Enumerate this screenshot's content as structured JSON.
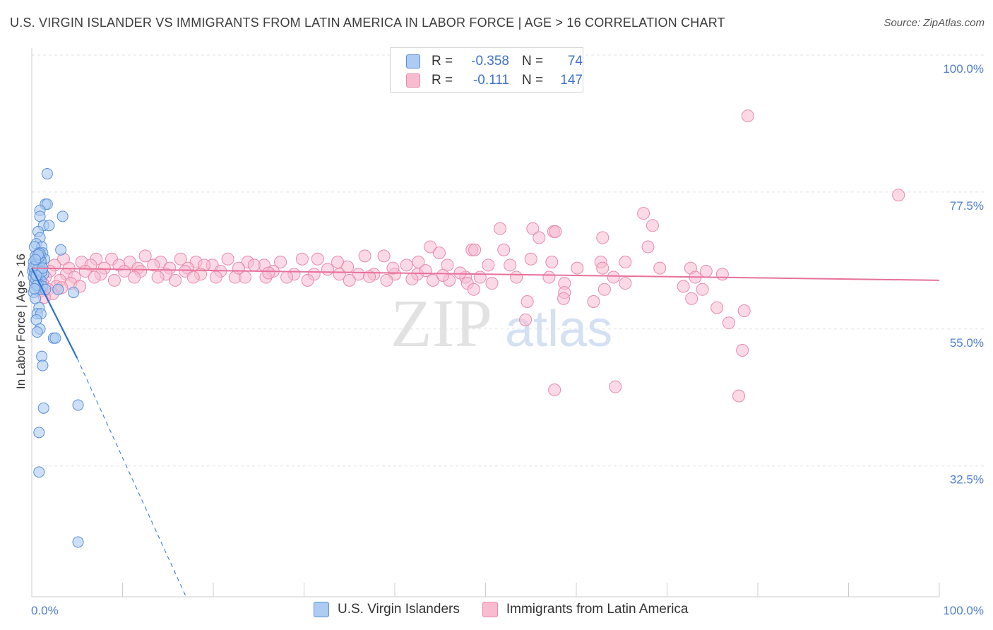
{
  "header": {
    "title": "U.S. VIRGIN ISLANDER VS IMMIGRANTS FROM LATIN AMERICA IN LABOR FORCE | AGE > 16 CORRELATION CHART",
    "source": "Source: ZipAtlas.com"
  },
  "legend": {
    "rows": [
      {
        "r_label": "R =",
        "r_value": "-0.358",
        "n_label": "N =",
        "n_value": "74"
      },
      {
        "r_label": "R =",
        "r_value": "-0.111",
        "n_label": "N =",
        "n_value": "147"
      }
    ]
  },
  "bottom_legend": {
    "series1": "U.S. Virgin Islanders",
    "series2": "Immigrants from Latin America"
  },
  "watermark": {
    "zip": "ZIP",
    "atlas": "atlas"
  },
  "colors": {
    "blue_fill": "#aecbf2",
    "blue_stroke": "#5a8fd8",
    "blue_line": "#2f6fd0",
    "pink_fill": "#f7bcd0",
    "pink_stroke": "#e98aab",
    "pink_line": "#e8719a",
    "grid": "#e3e3e3",
    "tick_text": "#4f7fcf"
  },
  "chart_data": {
    "type": "scatter",
    "title": "U.S. VIRGIN ISLANDER VS IMMIGRANTS FROM LATIN AMERICA IN LABOR FORCE | AGE > 16 CORRELATION CHART",
    "xlabel": "",
    "ylabel": "In Labor Force | Age > 16",
    "xlim": [
      0,
      100
    ],
    "ylim": [
      11,
      100
    ],
    "y_ticks": [
      32.5,
      55.0,
      77.5,
      100.0
    ],
    "y_tick_labels": [
      "32.5%",
      "55.0%",
      "77.5%",
      "100.0%"
    ],
    "x_tick_labels": [
      "0.0%",
      "100.0%"
    ],
    "grid": true,
    "legend_position": "top-center",
    "series": [
      {
        "name": "U.S. Virgin Islanders",
        "r": -0.358,
        "n": 74,
        "trend": {
          "x0": 0.0,
          "y0": 65.0,
          "x1": 5.0,
          "y1": 50.2,
          "dashed_to_x": 17.0,
          "dashed_to_y": 11.0
        },
        "points": [
          [
            1.7,
            80.5
          ],
          [
            1.5,
            75.5
          ],
          [
            1.7,
            75.5
          ],
          [
            0.9,
            74.5
          ],
          [
            3.4,
            73.5
          ],
          [
            0.9,
            73.5
          ],
          [
            1.3,
            72.0
          ],
          [
            1.9,
            72.0
          ],
          [
            0.7,
            71.0
          ],
          [
            0.9,
            70.0
          ],
          [
            0.5,
            69.0
          ],
          [
            1.1,
            68.5
          ],
          [
            0.3,
            68.5
          ],
          [
            1.2,
            67.5
          ],
          [
            3.2,
            68.0
          ],
          [
            0.8,
            67.5
          ],
          [
            1.0,
            67.0
          ],
          [
            0.4,
            67.0
          ],
          [
            0.6,
            66.5
          ],
          [
            1.4,
            66.5
          ],
          [
            0.2,
            66.0
          ],
          [
            0.7,
            66.0
          ],
          [
            1.1,
            65.5
          ],
          [
            0.5,
            65.5
          ],
          [
            0.3,
            65.0
          ],
          [
            0.9,
            65.0
          ],
          [
            0.1,
            64.5
          ],
          [
            0.6,
            64.5
          ],
          [
            1.3,
            64.0
          ],
          [
            0.4,
            64.0
          ],
          [
            0.8,
            63.5
          ],
          [
            0.2,
            63.5
          ],
          [
            0.6,
            63.0
          ],
          [
            1.0,
            63.0
          ],
          [
            0.3,
            62.5
          ],
          [
            0.7,
            62.5
          ],
          [
            1.2,
            62.0
          ],
          [
            0.5,
            62.0
          ],
          [
            0.9,
            61.5
          ],
          [
            1.5,
            61.5
          ],
          [
            0.2,
            61.0
          ],
          [
            2.9,
            61.5
          ],
          [
            4.6,
            61.0
          ],
          [
            0.4,
            60.0
          ],
          [
            0.8,
            58.5
          ],
          [
            0.6,
            57.5
          ],
          [
            1.0,
            57.5
          ],
          [
            0.5,
            56.5
          ],
          [
            0.9,
            55.0
          ],
          [
            0.6,
            54.5
          ],
          [
            2.4,
            53.5
          ],
          [
            2.6,
            53.5
          ],
          [
            1.1,
            50.5
          ],
          [
            1.2,
            49.0
          ],
          [
            1.3,
            42.0
          ],
          [
            5.1,
            42.5
          ],
          [
            0.8,
            38.0
          ],
          [
            0.8,
            31.5
          ],
          [
            5.1,
            20.0
          ],
          [
            0.3,
            64.2
          ],
          [
            0.5,
            65.8
          ],
          [
            0.7,
            64.8
          ],
          [
            1.0,
            66.2
          ],
          [
            0.4,
            63.2
          ],
          [
            0.6,
            62.2
          ],
          [
            0.2,
            65.2
          ],
          [
            0.8,
            66.8
          ],
          [
            1.1,
            64.4
          ],
          [
            0.3,
            61.6
          ],
          [
            0.9,
            67.4
          ],
          [
            1.2,
            65.0
          ],
          [
            0.5,
            63.8
          ],
          [
            0.7,
            67.2
          ],
          [
            0.4,
            66.4
          ]
        ]
      },
      {
        "name": "Immigrants from Latin America",
        "r": -0.111,
        "n": 147,
        "trend": {
          "x0": 0.0,
          "y0": 65.0,
          "x1": 100.0,
          "y1": 63.0
        },
        "points": [
          [
            78.9,
            90.0
          ],
          [
            95.5,
            77.0
          ],
          [
            67.4,
            74.0
          ],
          [
            68.4,
            72.0
          ],
          [
            51.6,
            71.5
          ],
          [
            55.2,
            71.5
          ],
          [
            57.5,
            71.0
          ],
          [
            57.7,
            71.0
          ],
          [
            55.9,
            70.0
          ],
          [
            62.9,
            70.0
          ],
          [
            67.9,
            68.5
          ],
          [
            43.9,
            68.5
          ],
          [
            48.5,
            68.0
          ],
          [
            48.8,
            68.0
          ],
          [
            52.0,
            68.0
          ],
          [
            44.9,
            67.5
          ],
          [
            38.8,
            67.0
          ],
          [
            36.7,
            67.0
          ],
          [
            29.8,
            66.5
          ],
          [
            31.5,
            66.5
          ],
          [
            55.0,
            66.5
          ],
          [
            57.3,
            66.0
          ],
          [
            62.7,
            66.0
          ],
          [
            65.4,
            66.0
          ],
          [
            33.7,
            66.0
          ],
          [
            42.6,
            66.0
          ],
          [
            41.3,
            65.5
          ],
          [
            45.8,
            65.5
          ],
          [
            50.3,
            65.5
          ],
          [
            52.7,
            65.5
          ],
          [
            60.1,
            65.0
          ],
          [
            62.9,
            65.0
          ],
          [
            69.2,
            65.0
          ],
          [
            72.6,
            65.0
          ],
          [
            74.3,
            64.5
          ],
          [
            76.1,
            64.0
          ],
          [
            26.6,
            64.5
          ],
          [
            28.9,
            64.0
          ],
          [
            31.1,
            64.0
          ],
          [
            33.9,
            64.0
          ],
          [
            36.0,
            64.0
          ],
          [
            37.7,
            64.0
          ],
          [
            40.0,
            64.0
          ],
          [
            42.5,
            64.0
          ],
          [
            47.8,
            63.5
          ],
          [
            49.4,
            63.5
          ],
          [
            53.4,
            63.5
          ],
          [
            57.0,
            63.5
          ],
          [
            64.1,
            63.5
          ],
          [
            73.1,
            63.5
          ],
          [
            22.4,
            63.5
          ],
          [
            23.5,
            63.5
          ],
          [
            25.8,
            63.5
          ],
          [
            28.1,
            63.5
          ],
          [
            30.4,
            63.0
          ],
          [
            35.0,
            63.0
          ],
          [
            39.1,
            63.0
          ],
          [
            44.2,
            63.0
          ],
          [
            46.0,
            63.0
          ],
          [
            48.0,
            62.5
          ],
          [
            50.7,
            62.5
          ],
          [
            58.7,
            62.5
          ],
          [
            65.4,
            62.5
          ],
          [
            71.8,
            62.0
          ],
          [
            73.9,
            61.5
          ],
          [
            63.1,
            61.5
          ],
          [
            48.7,
            61.5
          ],
          [
            58.7,
            61.0
          ],
          [
            58.6,
            60.0
          ],
          [
            72.7,
            60.0
          ],
          [
            61.9,
            59.5
          ],
          [
            54.6,
            59.5
          ],
          [
            75.5,
            58.5
          ],
          [
            78.5,
            58.0
          ],
          [
            76.8,
            56.0
          ],
          [
            54.4,
            56.5
          ],
          [
            78.3,
            51.5
          ],
          [
            64.3,
            45.5
          ],
          [
            57.6,
            45.0
          ],
          [
            77.9,
            44.0
          ],
          [
            3.5,
            66.5
          ],
          [
            5.5,
            66.0
          ],
          [
            7.1,
            66.5
          ],
          [
            8.8,
            66.5
          ],
          [
            10.8,
            66.0
          ],
          [
            12.5,
            67.0
          ],
          [
            14.2,
            66.0
          ],
          [
            16.4,
            66.5
          ],
          [
            18.1,
            66.0
          ],
          [
            19.9,
            65.5
          ],
          [
            21.6,
            66.5
          ],
          [
            23.8,
            66.0
          ],
          [
            25.6,
            65.5
          ],
          [
            27.4,
            66.0
          ],
          [
            2.5,
            65.5
          ],
          [
            4.1,
            65.0
          ],
          [
            6.5,
            65.5
          ],
          [
            8.0,
            65.0
          ],
          [
            9.6,
            65.5
          ],
          [
            11.7,
            65.0
          ],
          [
            13.4,
            65.5
          ],
          [
            15.2,
            65.0
          ],
          [
            17.2,
            65.0
          ],
          [
            19.0,
            65.5
          ],
          [
            20.8,
            64.5
          ],
          [
            22.8,
            65.0
          ],
          [
            24.5,
            65.5
          ],
          [
            2.0,
            64.5
          ],
          [
            3.8,
            64.0
          ],
          [
            5.9,
            64.5
          ],
          [
            7.6,
            64.0
          ],
          [
            10.2,
            64.5
          ],
          [
            12.0,
            64.5
          ],
          [
            14.8,
            64.0
          ],
          [
            16.9,
            64.5
          ],
          [
            18.6,
            64.0
          ],
          [
            20.3,
            63.5
          ],
          [
            1.5,
            63.5
          ],
          [
            3.1,
            63.0
          ],
          [
            4.7,
            63.5
          ],
          [
            6.9,
            63.5
          ],
          [
            9.1,
            63.0
          ],
          [
            11.3,
            63.5
          ],
          [
            13.9,
            63.5
          ],
          [
            15.8,
            63.0
          ],
          [
            17.8,
            63.5
          ],
          [
            1.2,
            62.5
          ],
          [
            2.7,
            62.0
          ],
          [
            4.3,
            62.5
          ],
          [
            5.3,
            62.0
          ],
          [
            1.8,
            61.5
          ],
          [
            2.3,
            60.8
          ],
          [
            0.6,
            62.8
          ],
          [
            0.9,
            61.2
          ],
          [
            1.4,
            60.2
          ],
          [
            3.3,
            61.8
          ],
          [
            26.1,
            64.2
          ],
          [
            32.6,
            64.8
          ],
          [
            34.8,
            65.2
          ],
          [
            37.2,
            63.6
          ],
          [
            39.8,
            65.0
          ],
          [
            41.9,
            63.2
          ],
          [
            43.4,
            64.6
          ],
          [
            45.3,
            63.8
          ],
          [
            47.2,
            64.2
          ],
          [
            0.8,
            64.6
          ]
        ]
      }
    ]
  }
}
